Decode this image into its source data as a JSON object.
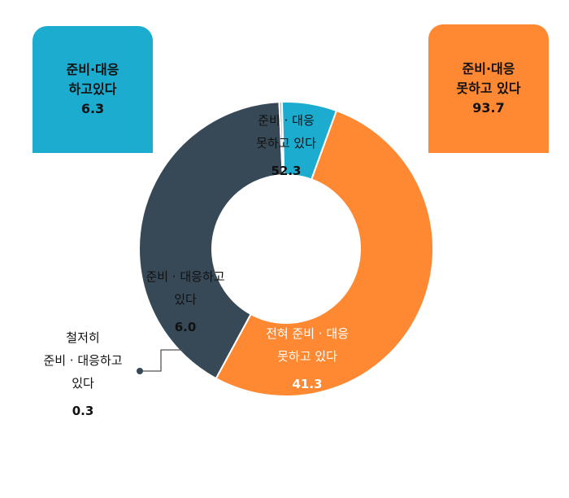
{
  "summary_boxes": {
    "left": {
      "line1": "준비·대응",
      "line2": "하고있다",
      "value": "6.3",
      "color": "#1bacd0"
    },
    "right": {
      "line1": "준비·대응",
      "line2": "못하고 있다",
      "value": "93.7",
      "color": "#ff8832"
    }
  },
  "chart_data": {
    "type": "pie",
    "variant": "donut",
    "unit": "%",
    "slices": [
      {
        "label": "준비 · 대응 못하고 있다",
        "label_lines": [
          "준비 · 대응",
          "못하고 있다"
        ],
        "value": 52.3,
        "value_text": "52.3",
        "color": "#ff8832"
      },
      {
        "label": "전혀 준비 · 대응 못하고 있다",
        "label_lines": [
          "전혀 준비 · 대응",
          "못하고 있다"
        ],
        "value": 41.3,
        "value_text": "41.3",
        "color": "#374856"
      },
      {
        "label": "철저히 준비 · 대응하고 있다",
        "label_lines": [
          "철저히",
          "준비 · 대응하고",
          "있다"
        ],
        "value": 0.3,
        "value_text": "0.3",
        "color": "#b7b7b7"
      },
      {
        "label": "준비 · 대응하고 있다",
        "label_lines": [
          "준비 · 대응하고",
          "있다"
        ],
        "value": 6.0,
        "value_text": "6.0",
        "color": "#1bacd0"
      }
    ]
  }
}
